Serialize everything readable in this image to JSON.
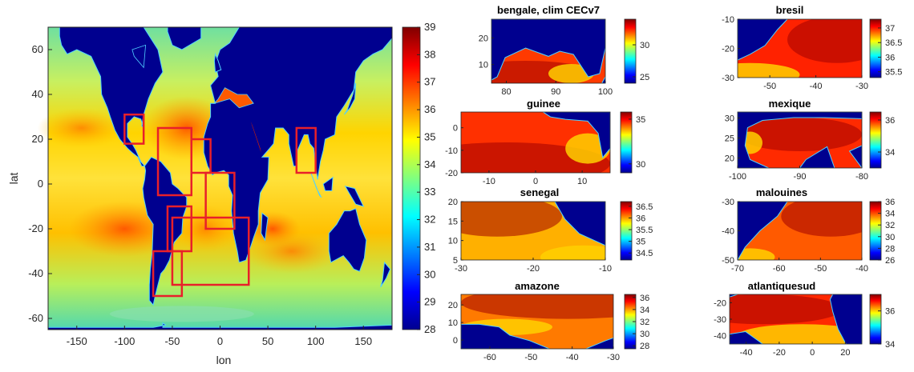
{
  "chart_data": [
    {
      "type": "heatmap",
      "title": "",
      "xlabel": "lon",
      "ylabel": "lat",
      "xlim": [
        -180,
        180
      ],
      "ylim": [
        -65,
        70
      ],
      "xticks": [
        -150,
        -100,
        -50,
        0,
        50,
        100,
        150
      ],
      "yticks": [
        -60,
        -40,
        -20,
        0,
        20,
        40,
        60
      ],
      "colorbar": {
        "min": 28,
        "max": 39,
        "ticks": [
          28,
          29,
          30,
          31,
          32,
          33,
          34,
          35,
          36,
          37,
          38,
          39
        ]
      },
      "land_color": "#00008f",
      "coast_color": "#4fd0ff",
      "box_color": "#e8202a",
      "regions": [
        {
          "name": "bengale",
          "lon": [
            80,
            100
          ],
          "lat": [
            5,
            25
          ]
        },
        {
          "name": "bresil",
          "lon": [
            -55,
            -30
          ],
          "lat": [
            -30,
            -10
          ]
        },
        {
          "name": "guinee",
          "lon": [
            -15,
            15
          ],
          "lat": [
            -20,
            5
          ]
        },
        {
          "name": "mexique",
          "lon": [
            -100,
            -80
          ],
          "lat": [
            18,
            31
          ]
        },
        {
          "name": "senegal",
          "lon": [
            -30,
            -10
          ],
          "lat": [
            5,
            20
          ]
        },
        {
          "name": "malouines",
          "lon": [
            -70,
            -40
          ],
          "lat": [
            -50,
            -30
          ]
        },
        {
          "name": "amazone",
          "lon": [
            -65,
            -30
          ],
          "lat": [
            -5,
            25
          ]
        },
        {
          "name": "atlantiquesud",
          "lon": [
            -50,
            30
          ],
          "lat": [
            -45,
            -15
          ]
        }
      ]
    },
    {
      "type": "heatmap",
      "title": "bengale, clim CECv7",
      "xlim": [
        77,
        100
      ],
      "ylim": [
        3,
        27
      ],
      "xticks": [
        80,
        90,
        100
      ],
      "yticks": [
        10,
        20
      ],
      "colorbar": {
        "min": 24,
        "max": 34,
        "ticks": [
          25,
          30
        ]
      }
    },
    {
      "type": "heatmap",
      "title": "bresil",
      "xlim": [
        -57,
        -30
      ],
      "ylim": [
        -30,
        -10
      ],
      "xticks": [
        -50,
        -40,
        -30
      ],
      "yticks": [
        -10,
        -20,
        -30
      ],
      "colorbar": {
        "min": 35.3,
        "max": 37.3,
        "ticks": [
          35.5,
          36,
          36.5,
          37
        ]
      }
    },
    {
      "type": "heatmap",
      "title": "guinee",
      "xlim": [
        -16,
        16
      ],
      "ylim": [
        -20,
        7
      ],
      "xticks": [
        -10,
        0,
        10
      ],
      "yticks": [
        0,
        -10,
        -20
      ],
      "colorbar": {
        "min": 29,
        "max": 35.8,
        "ticks": [
          30,
          35
        ]
      }
    },
    {
      "type": "heatmap",
      "title": "mexique",
      "xlim": [
        -100,
        -80
      ],
      "ylim": [
        17.5,
        31.5
      ],
      "xticks": [
        -100,
        -90,
        -80
      ],
      "yticks": [
        30,
        25,
        20
      ],
      "colorbar": {
        "min": 33,
        "max": 36.5,
        "ticks": [
          34,
          36
        ]
      }
    },
    {
      "type": "heatmap",
      "title": "senegal",
      "xlim": [
        -30,
        -10
      ],
      "ylim": [
        5,
        20
      ],
      "xticks": [
        -30,
        -20,
        -10
      ],
      "yticks": [
        20,
        15,
        10,
        5
      ],
      "colorbar": {
        "min": 34.2,
        "max": 36.7,
        "ticks": [
          34.5,
          35,
          35.5,
          36,
          36.5
        ]
      }
    },
    {
      "type": "heatmap",
      "title": "malouines",
      "xlim": [
        -70,
        -40
      ],
      "ylim": [
        -50,
        -30
      ],
      "xticks": [
        -70,
        -60,
        -50,
        -40
      ],
      "yticks": [
        -30,
        -40,
        -50
      ],
      "colorbar": {
        "min": 26,
        "max": 36,
        "ticks": [
          26,
          28,
          30,
          32,
          34,
          36
        ]
      }
    },
    {
      "type": "heatmap",
      "title": "amazone",
      "xlim": [
        -67,
        -30
      ],
      "ylim": [
        -5,
        26
      ],
      "xticks": [
        -60,
        -50,
        -40,
        -30
      ],
      "yticks": [
        20,
        10,
        0
      ],
      "colorbar": {
        "min": 27.5,
        "max": 36.5,
        "ticks": [
          28,
          30,
          32,
          34,
          36
        ]
      }
    },
    {
      "type": "heatmap",
      "title": "atlantiquesud",
      "xlim": [
        -50,
        30
      ],
      "ylim": [
        -45,
        -15
      ],
      "xticks": [
        -40,
        -20,
        0,
        20
      ],
      "yticks": [
        -20,
        -30,
        -40
      ],
      "colorbar": {
        "min": 34,
        "max": 37,
        "ticks": [
          34,
          36
        ]
      }
    }
  ]
}
